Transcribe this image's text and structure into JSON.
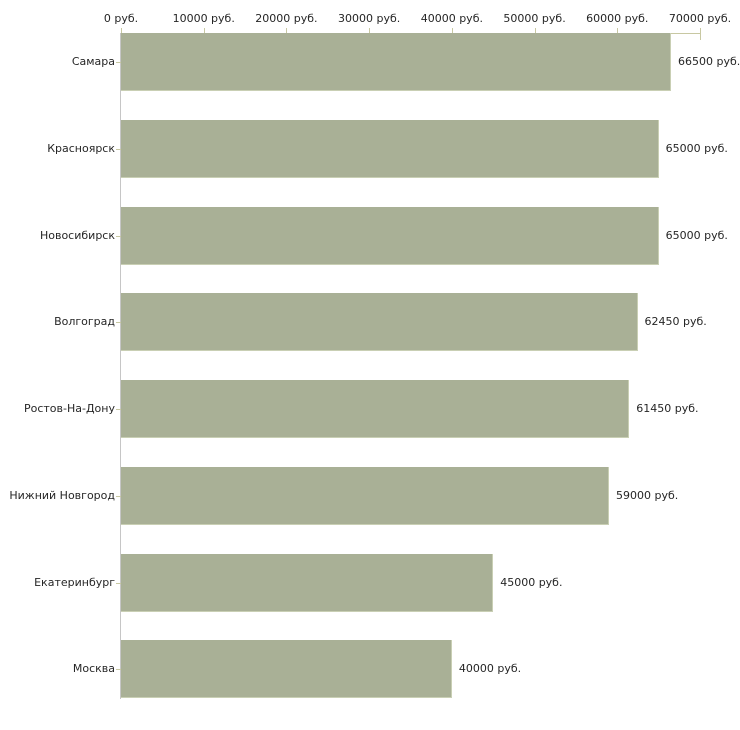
{
  "chart_data": {
    "type": "bar",
    "orientation": "horizontal",
    "title": "",
    "xlabel": "",
    "ylabel": "",
    "unit": "руб.",
    "categories": [
      "Самара",
      "Красноярск",
      "Новосибирск",
      "Волгоград",
      "Ростов-На-Дону",
      "Нижний Новгород",
      "Екатеринбург",
      "Москва"
    ],
    "values": [
      66500,
      65000,
      65000,
      62450,
      61450,
      59000,
      45000,
      40000
    ],
    "value_labels": [
      "66500 руб.",
      "65000 руб.",
      "65000 руб.",
      "62450 руб.",
      "61450 руб.",
      "59000 руб.",
      "45000 руб.",
      "40000 руб."
    ],
    "x_ticks": [
      {
        "value": 0,
        "label": "0 руб."
      },
      {
        "value": 10000,
        "label": "10000 руб."
      },
      {
        "value": 20000,
        "label": "20000 руб."
      },
      {
        "value": 30000,
        "label": "30000 руб."
      },
      {
        "value": 40000,
        "label": "40000 руб."
      },
      {
        "value": 50000,
        "label": "50000 руб."
      },
      {
        "value": 60000,
        "label": "60000 руб."
      },
      {
        "value": 70000,
        "label": "70000 руб."
      }
    ],
    "xlim": [
      0,
      70000
    ],
    "grid": false,
    "legend": false,
    "colors": {
      "bar_fill": "#a9b096",
      "bar_border": "#c9cfb4",
      "axis": "#c8c8a2",
      "y_axis_line": "#c6c6c6",
      "text": "#262626",
      "background": "#ffffff"
    }
  }
}
